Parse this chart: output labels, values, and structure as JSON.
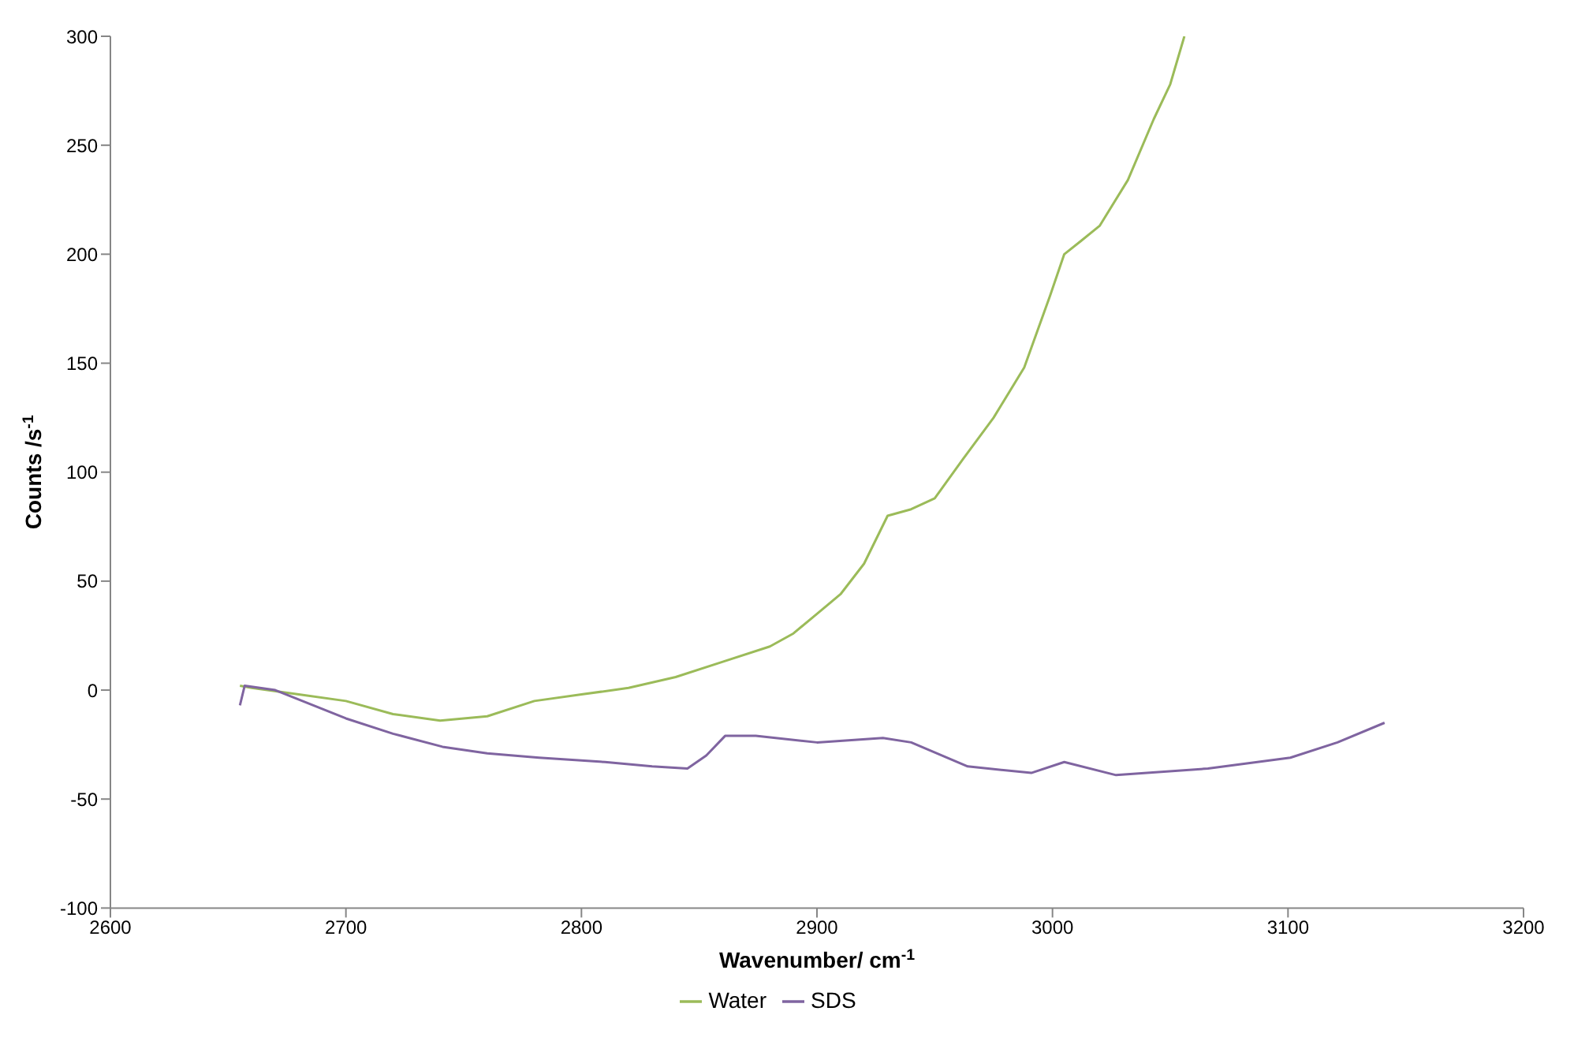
{
  "chart_data": {
    "type": "line",
    "xlabel": "Wavenumber/ cm$^{-1}$",
    "ylabel": "Counts /s$^{-1}$",
    "xlim": [
      2600,
      3200
    ],
    "xticks": [
      2600,
      2700,
      2800,
      2900,
      3000,
      3100,
      3200
    ],
    "ylim": [
      -100,
      300
    ],
    "yticks": [
      -100,
      -50,
      0,
      50,
      100,
      150,
      200,
      250,
      300
    ],
    "grid": false,
    "legend": "bottom",
    "marker": "none",
    "line_style": "solid",
    "series": [
      {
        "name": "Water",
        "color": "#9bbb59",
        "x": [
          2655,
          2660,
          2680,
          2700,
          2720,
          2740,
          2760,
          2780,
          2800,
          2820,
          2840,
          2860,
          2880,
          2890,
          2900,
          2910,
          2920,
          2930,
          2940,
          2950,
          2962,
          2975,
          2988,
          2999,
          3005,
          3012,
          3020,
          3032,
          3043,
          3050,
          3056
        ],
        "values": [
          2,
          1,
          -2,
          -5,
          -11,
          -14,
          -12,
          -5,
          -2,
          1,
          6,
          13,
          20,
          26,
          35,
          44,
          58,
          80,
          83,
          88,
          106,
          125,
          148,
          181,
          200,
          206,
          213,
          234,
          262,
          278,
          300
        ]
      },
      {
        "name": "SDS",
        "color": "#7f64a0",
        "x": [
          2655,
          2657,
          2670,
          2700,
          2720,
          2741,
          2760,
          2782,
          2810,
          2830,
          2845,
          2853,
          2861,
          2874,
          2900,
          2928,
          2940,
          2964,
          2991,
          3005,
          3027,
          3066,
          3101,
          3121,
          3141
        ],
        "values": [
          -7,
          2,
          0,
          -13,
          -20,
          -26,
          -29,
          -31,
          -33,
          -35,
          -36,
          -30,
          -21,
          -21,
          -24,
          -22,
          -24,
          -35,
          -38,
          -33,
          -39,
          -36,
          -31,
          -24,
          -15
        ]
      }
    ]
  }
}
